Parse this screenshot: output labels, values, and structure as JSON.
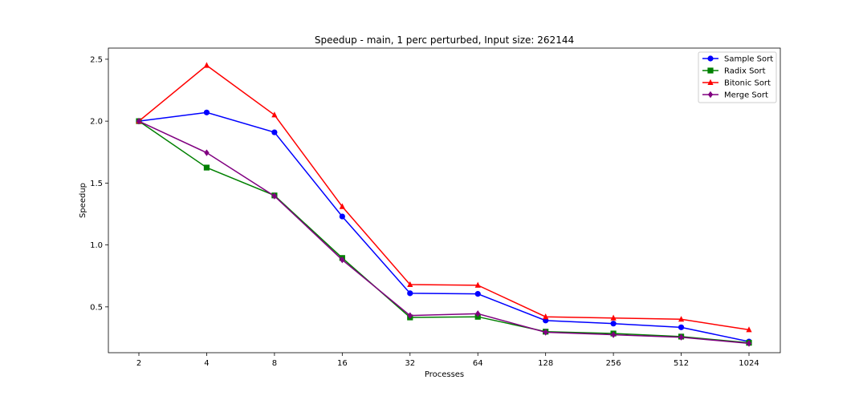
{
  "chart_data": {
    "type": "line",
    "title": "Speedup - main, 1 perc perturbed, Input size: 262144",
    "xlabel": "Processes",
    "ylabel": "Speedup",
    "categories": [
      "2",
      "4",
      "8",
      "16",
      "32",
      "64",
      "128",
      "256",
      "512",
      "1024"
    ],
    "ylim": [
      0.13,
      2.59
    ],
    "yticks": [
      0.5,
      1.0,
      1.5,
      2.0,
      2.5
    ],
    "ytick_labels": [
      "0.5",
      "1.0",
      "1.5",
      "2.0",
      "2.5"
    ],
    "grid": false,
    "legend_position": "top-right",
    "series": [
      {
        "name": "Sample Sort",
        "color": "#0000ff",
        "marker": "circle",
        "values": [
          2.0,
          2.07,
          1.91,
          1.23,
          0.61,
          0.605,
          0.39,
          0.365,
          0.335,
          0.22
        ]
      },
      {
        "name": "Radix Sort",
        "color": "#008000",
        "marker": "square",
        "values": [
          2.0,
          1.625,
          1.4,
          0.895,
          0.415,
          0.42,
          0.3,
          0.285,
          0.26,
          0.21
        ]
      },
      {
        "name": "Bitonic Sort",
        "color": "#ff0000",
        "marker": "triangle",
        "values": [
          2.0,
          2.45,
          2.05,
          1.31,
          0.68,
          0.675,
          0.42,
          0.41,
          0.4,
          0.315
        ]
      },
      {
        "name": "Merge Sort",
        "color": "#800080",
        "marker": "diamond",
        "values": [
          2.0,
          1.745,
          1.395,
          0.88,
          0.43,
          0.445,
          0.295,
          0.275,
          0.255,
          0.205
        ]
      }
    ]
  }
}
